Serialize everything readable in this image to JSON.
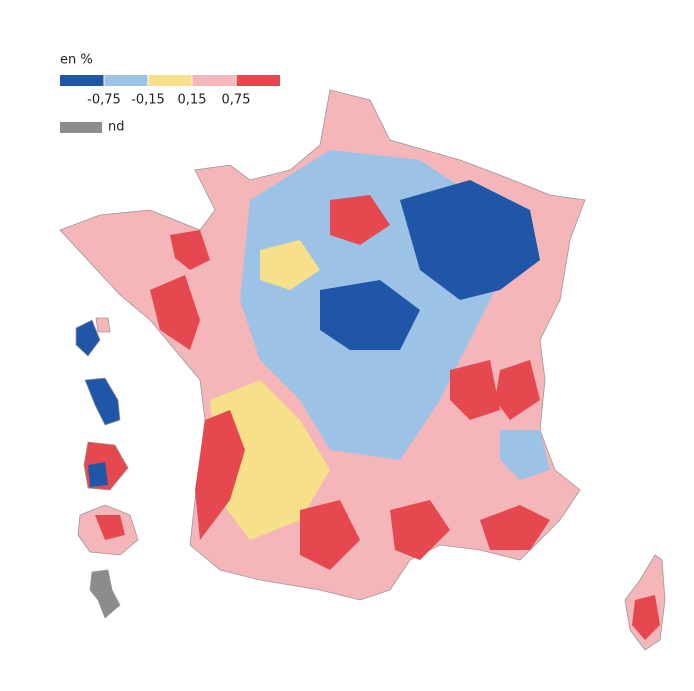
{
  "legend": {
    "title": "en %",
    "classes": [
      {
        "color": "#1f56a8"
      },
      {
        "color": "#9cc3e6"
      },
      {
        "color": "#f7e08a"
      },
      {
        "color": "#f4b6b9"
      },
      {
        "color": "#e5484f"
      }
    ],
    "ticks": [
      {
        "value": -0.75,
        "label": "-0,75"
      },
      {
        "value": -0.15,
        "label": "-0,15"
      },
      {
        "value": 0.15,
        "label": "0,15"
      },
      {
        "value": 0.75,
        "label": "0,75"
      }
    ],
    "nd": {
      "label": "nd",
      "color": "#8c8c8c"
    }
  }
}
